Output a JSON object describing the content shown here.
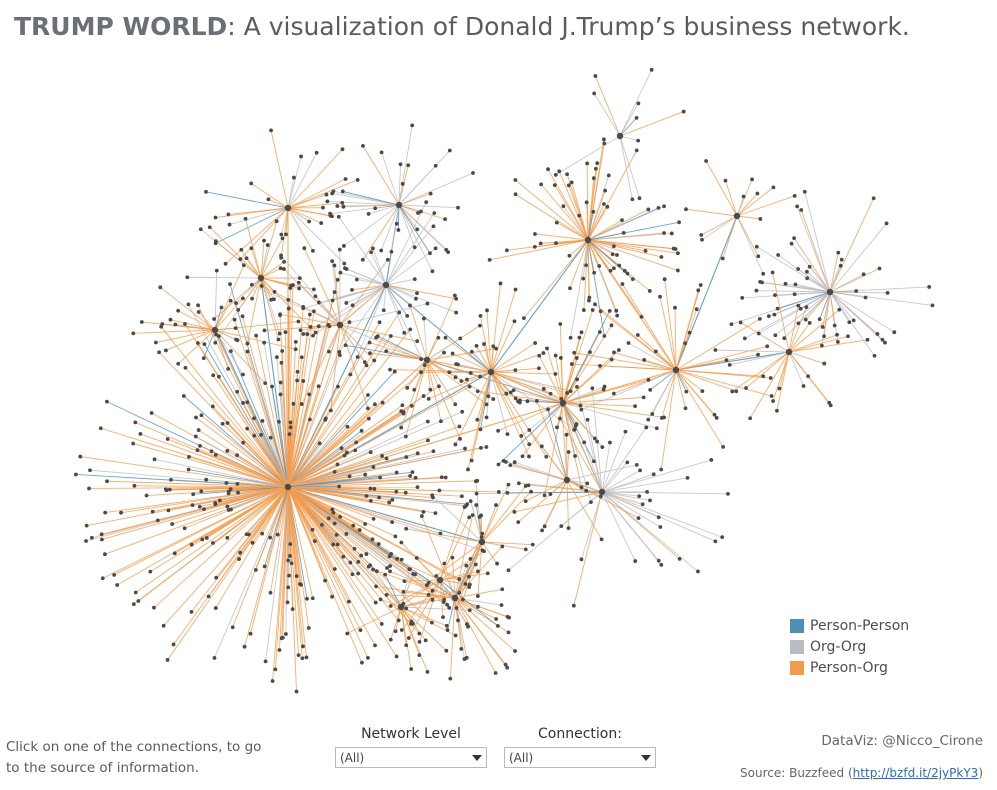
{
  "title": {
    "bold": "TRUMP WORLD",
    "rest": ": A visualization of Donald J.Trump’s business network."
  },
  "legend": [
    {
      "label": "Person-Person",
      "color": "#4e8fb8"
    },
    {
      "label": "Org-Org",
      "color": "#b9bcc2"
    },
    {
      "label": "Person-Org",
      "color": "#f49a48"
    }
  ],
  "hint": "Click on one of the connections, to go to the source of information.",
  "filters": {
    "network_level": {
      "label": "Network Level",
      "value": "(All)"
    },
    "connection": {
      "label": "Connection:",
      "value": "(All)"
    }
  },
  "credit": "DataViz: @Nicco_Cirone",
  "source": {
    "prefix": "Source: Buzzfeed (",
    "link": "http://bzfd.it/2jyPkY3",
    "suffix": ")"
  },
  "colors": {
    "node": "#4a4a4a",
    "person_person": "#4e8fb8",
    "org_org": "#b9bcc2",
    "person_org": "#f49a48"
  }
}
